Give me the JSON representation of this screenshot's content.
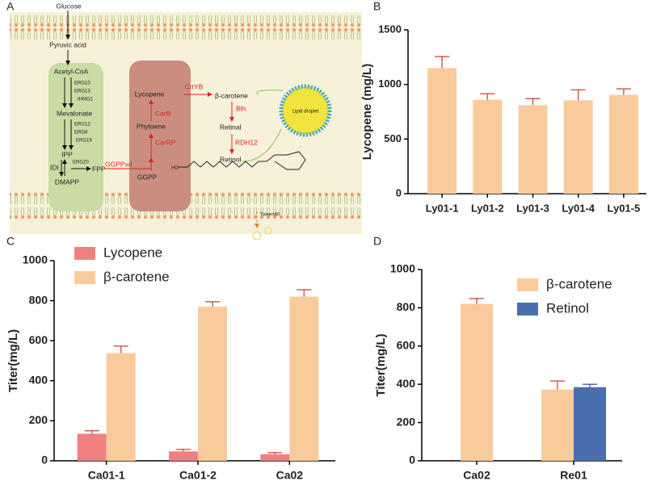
{
  "diagram": {
    "panel": "A",
    "texts": {
      "glucose": "Glucose",
      "pyruvic": "Pyruvic acid",
      "acetyl": "Acetyl-CoA",
      "erg10": "ERG10",
      "erg13": "ERG13",
      "thmg1": "tHMG1",
      "mevalonate": "Mevalonate",
      "erg12": "ERG12",
      "erg8": "ERG8",
      "erg19": "ERG19",
      "ipp": "IPP",
      "idi": "IDI",
      "erg20": "ERG20",
      "fpp": "FPP",
      "dmapp": "DMAPP",
      "ggppxd": "GGPPxd",
      "ggpp": "GGPP",
      "lycopene": "Lycopene",
      "carb": "CarB",
      "phytoene": "Phytoene",
      "carrp": "CarRP",
      "crtyb": "CrtYB",
      "bcarotene": "β-carotene",
      "blh": "Blh",
      "retinal": "Retinal",
      "rdh12": "RDH12",
      "retinol": "Retinol",
      "lipid": "Lipid droplet",
      "ho": "HO",
      "tween": "Tween80"
    }
  },
  "chart_data": [
    {
      "type": "bar",
      "panel": "B",
      "y_label": "Lycopene (mg/L)",
      "categories": [
        "Ly01-1",
        "Ly01-2",
        "Ly01-3",
        "Ly01-4",
        "Ly01-5"
      ],
      "values": [
        1150,
        860,
        810,
        855,
        905
      ],
      "errors": [
        105,
        55,
        60,
        95,
        55
      ],
      "color": "#f9cb9c",
      "ylim": [
        0,
        1500
      ],
      "yticks": [
        0,
        500,
        1000,
        1500
      ],
      "grid": false
    },
    {
      "type": "bar",
      "panel": "C",
      "y_label": "Titer(mg/L)",
      "categories": [
        "Ca01-1",
        "Ca01-2",
        "Ca02"
      ],
      "series": [
        {
          "name": "Lycopene",
          "color": "#f08080",
          "values": [
            135,
            47,
            33
          ],
          "errors": [
            15,
            10,
            8
          ]
        },
        {
          "name": "β-carotene",
          "color": "#f9cb9c",
          "values": [
            538,
            770,
            820
          ],
          "errors": [
            35,
            25,
            35
          ]
        }
      ],
      "ylim": [
        0,
        1000
      ],
      "yticks": [
        0,
        200,
        400,
        600,
        800,
        1000
      ],
      "grid": false,
      "legend": "upper left"
    },
    {
      "type": "bar",
      "panel": "D",
      "y_label": "Titer(mg/L)",
      "categories": [
        "Ca02",
        "Re01"
      ],
      "series": [
        {
          "name": "β-carotene",
          "color": "#f9cb9c",
          "values": [
            820,
            372
          ],
          "errors": [
            28,
            45
          ]
        },
        {
          "name": "Retinol",
          "color": "#4a6fae",
          "values": [
            null,
            385
          ],
          "errors": [
            null,
            15
          ]
        }
      ],
      "ylim": [
        0,
        1000
      ],
      "yticks": [
        0,
        200,
        400,
        600,
        800,
        1000
      ],
      "grid": false,
      "legend": "upper right"
    }
  ]
}
